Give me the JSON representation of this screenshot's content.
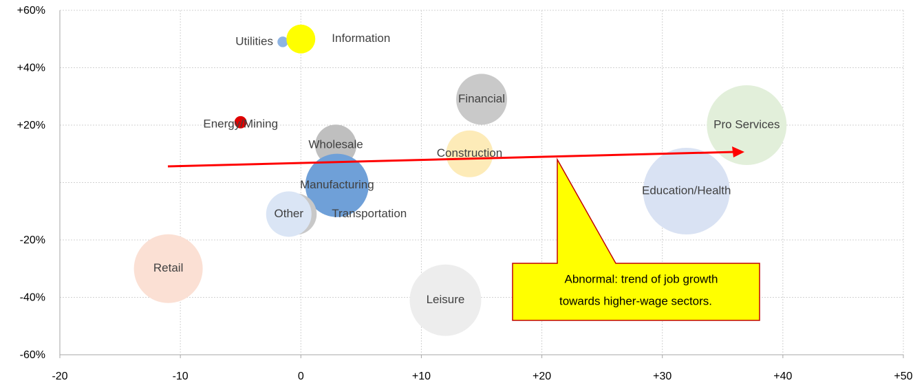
{
  "chart_data": {
    "type": "bubble",
    "points": [
      {
        "name": "Education/Health",
        "x": 32,
        "y": -3,
        "size": 397,
        "color": "#d9e2f3"
      },
      {
        "name": "Pro Services",
        "x": 37,
        "y": 20,
        "size": 336,
        "color": "#e2efda"
      },
      {
        "name": "Leisure",
        "x": 12,
        "y": -41,
        "size": 270,
        "color": "#ededed"
      },
      {
        "name": "Retail",
        "x": -11,
        "y": -30,
        "size": 250,
        "color": "#fbe0d4"
      },
      {
        "name": "Financial",
        "x": 15,
        "y": 29,
        "size": 137,
        "color": "#c9c9c9"
      },
      {
        "name": "Construction",
        "x": 14,
        "y": 10,
        "size": 116,
        "color": "#fdebb8"
      },
      {
        "name": "Wholesale",
        "x": 2.9,
        "y": 13,
        "size": 90,
        "color": "#bfbfbf"
      },
      {
        "name": "Manufacturing",
        "x": 3,
        "y": -1,
        "size": 212,
        "color": "#6fa0d8"
      },
      {
        "name": "Transportation",
        "x": -0.4,
        "y": -11,
        "size": 90,
        "color": "#c8c8c8"
      },
      {
        "name": "Other",
        "x": -1,
        "y": -11,
        "size": 109,
        "color": "#dae5f5"
      },
      {
        "name": "Utilities",
        "x": -1.5,
        "y": 49,
        "size": 6,
        "color": "#8eb4e3"
      },
      {
        "name": "Information",
        "x": 0,
        "y": 50,
        "size": 44,
        "color": "#ffff00"
      },
      {
        "name": "Energy/Mining",
        "x": -5,
        "y": 21,
        "size": 8,
        "color": "#e00000"
      }
    ],
    "xlim": [
      -20,
      50
    ],
    "xticks": [
      -20,
      -10,
      0,
      {
        "value": 10,
        "label": "+10"
      },
      {
        "value": 20,
        "label": "+20"
      },
      {
        "value": 30,
        "label": "+30"
      },
      {
        "value": 40,
        "label": "+40"
      },
      {
        "value": 50,
        "label": "+50"
      }
    ],
    "ylim": [
      -60,
      60
    ],
    "yticks": [
      {
        "value": -60,
        "label": "-60%"
      },
      {
        "value": -40,
        "label": "-40%"
      },
      {
        "value": -20,
        "label": "-20%"
      },
      0,
      {
        "value": 20,
        "label": "+20%"
      },
      {
        "value": 40,
        "label": "+40%"
      },
      {
        "value": 60,
        "label": "+60%"
      }
    ],
    "grid": true,
    "annotation": [
      "Abnormal: trend of job growth",
      "towards higher-wage sectors."
    ]
  }
}
